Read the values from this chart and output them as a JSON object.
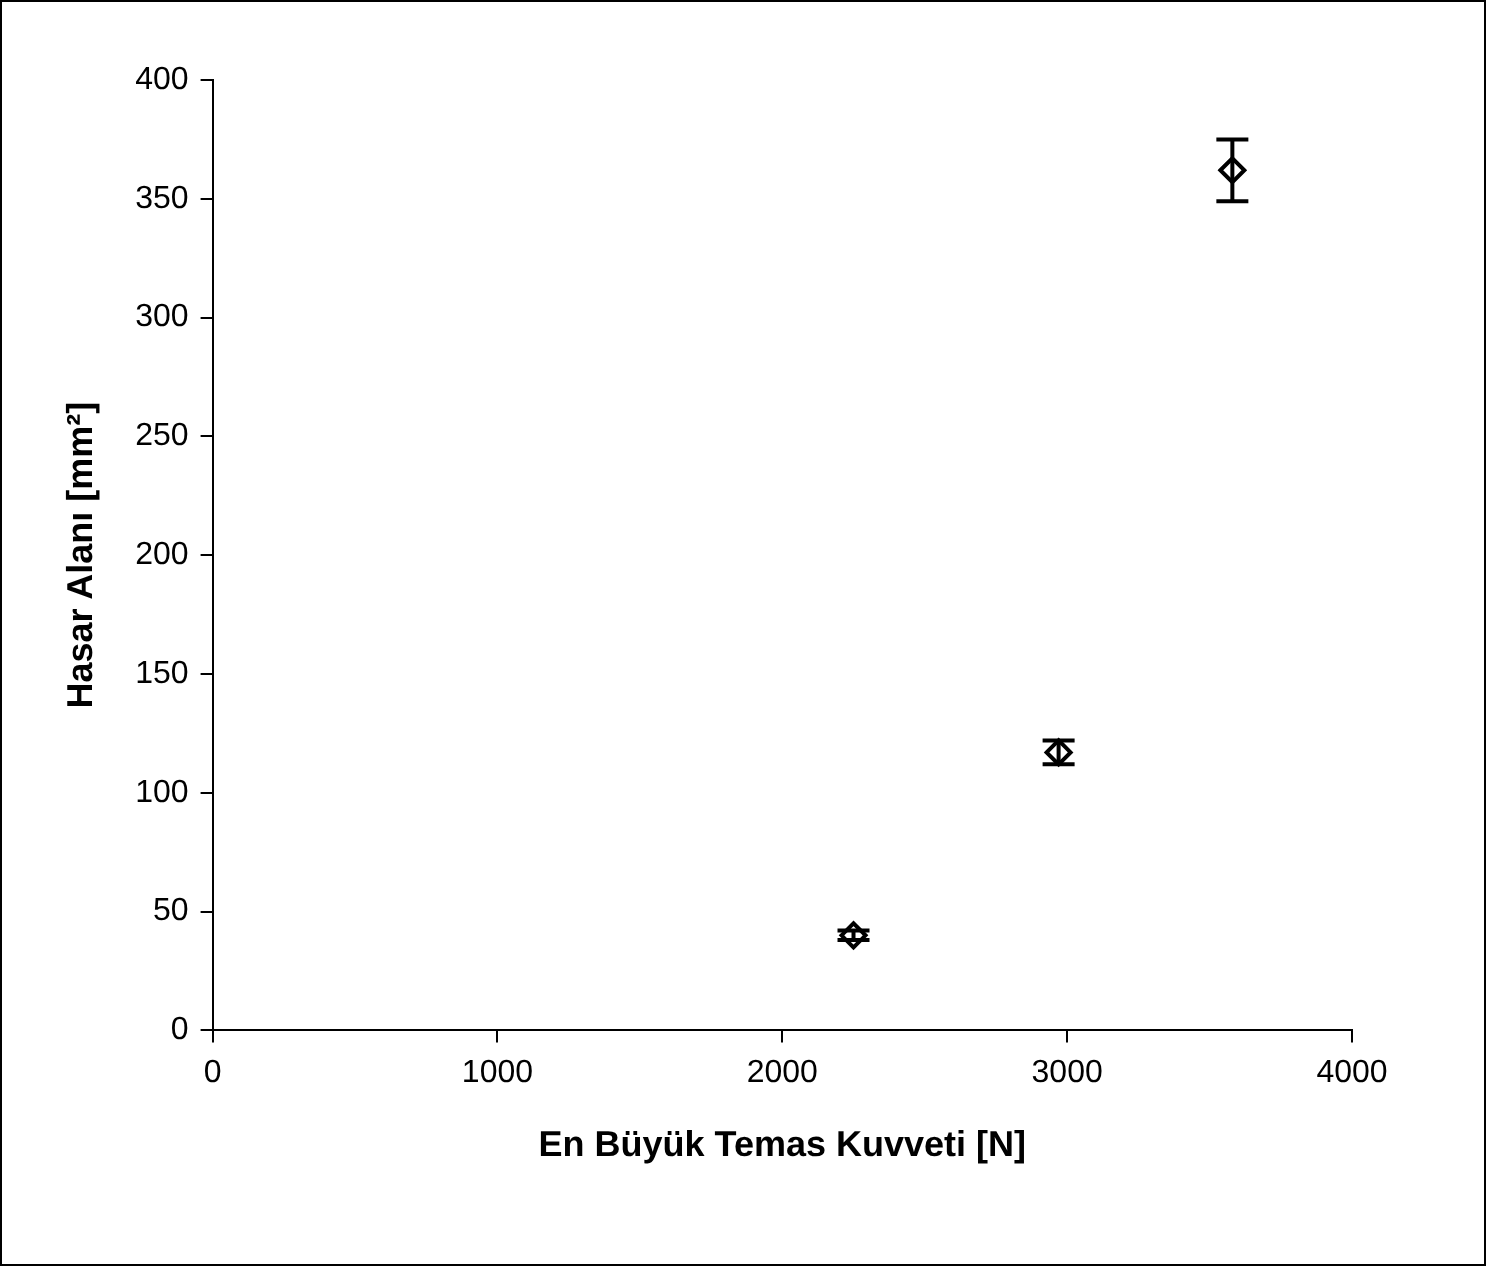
{
  "chart_data": {
    "type": "scatter",
    "xlabel": "En Büyük Temas Kuvveti [N]",
    "ylabel": "Hasar Alanı [mm²]",
    "x": [
      2250,
      2970,
      3580
    ],
    "series": [
      {
        "color": "#000000",
        "values": [
          40,
          117,
          362
        ],
        "errors": [
          2,
          5,
          13
        ]
      }
    ],
    "xlim": [
      0,
      4000
    ],
    "xticks": [
      0,
      1000,
      2000,
      3000,
      4000
    ],
    "ylim": [
      0,
      400
    ],
    "yticks": [
      0,
      50,
      100,
      150,
      200,
      250,
      300,
      350,
      400
    ],
    "grid": false,
    "legend": false,
    "marker": "diamond"
  }
}
